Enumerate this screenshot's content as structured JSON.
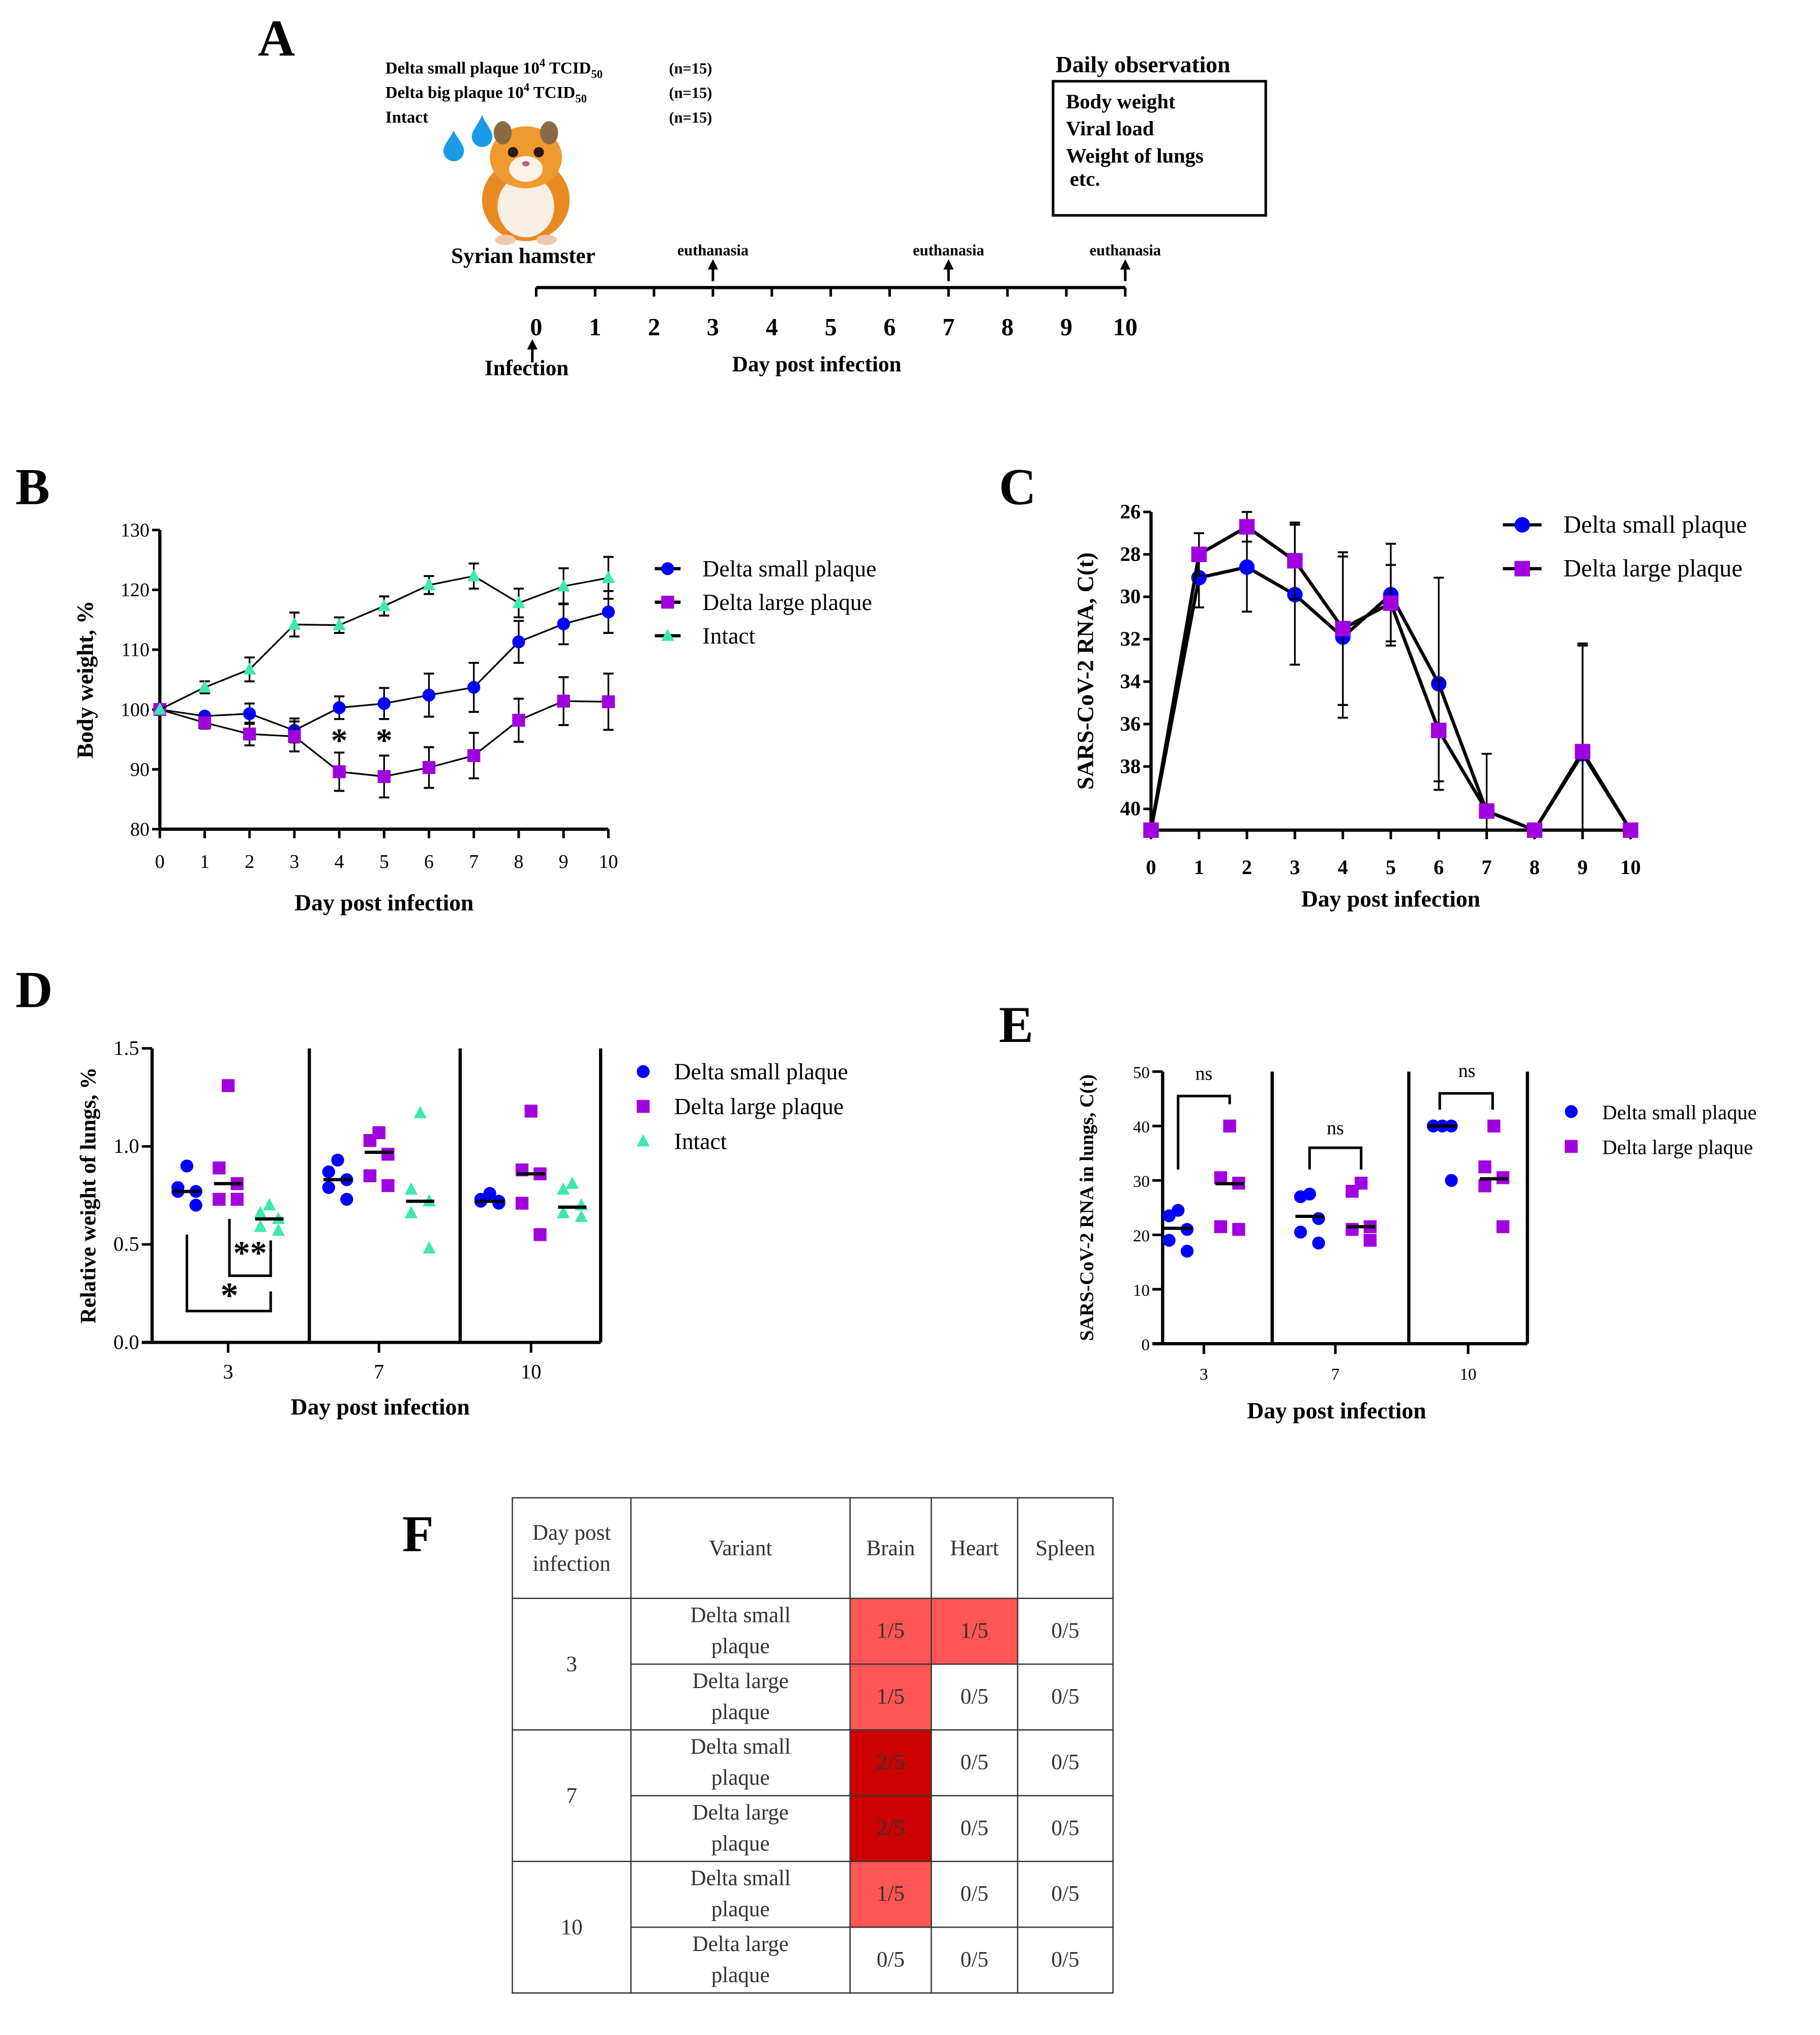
{
  "panel_letters": {
    "A": "A",
    "B": "B",
    "C": "C",
    "D": "D",
    "E": "E",
    "F": "F"
  },
  "colors": {
    "small": "#0000ff",
    "large": "#a000dd",
    "intact": "#3ee8b0",
    "drop": "#1a9be6",
    "cell_light": "#ff5555",
    "cell_dark": "#cc0000"
  },
  "panel_a": {
    "groups": [
      {
        "name": "Delta small plaque 10",
        "exp": "4",
        "unit": " TCID",
        "sub": "50",
        "n": "(n=15)"
      },
      {
        "name": "Delta big plaque 10",
        "exp": "4",
        "unit": " TCID",
        "sub": "50",
        "n": "(n=15)"
      },
      {
        "name": "Intact",
        "exp": "",
        "unit": "",
        "sub": "",
        "n": "(n=15)"
      }
    ],
    "animal": "Syrian hamster",
    "infection": "Infection",
    "euthanasia": "euthanasia",
    "euthanasia_days": [
      3,
      7,
      10
    ],
    "timeline_days": [
      "0",
      "1",
      "2",
      "3",
      "4",
      "5",
      "6",
      "7",
      "8",
      "9",
      "10"
    ],
    "xlabel": "Day post infection",
    "observation_title": "Daily observation",
    "observations": [
      "Body weight",
      "Viral load",
      "Weight of lungs",
      "etc."
    ]
  },
  "chart_data": [
    {
      "panel": "B",
      "type": "line",
      "title": "",
      "xlabel": "Day post infection",
      "ylabel": "Body weight, %",
      "x": [
        0,
        1,
        2,
        3,
        4,
        5,
        6,
        7,
        8,
        9,
        10
      ],
      "xticks": [
        "0",
        "1",
        "2",
        "3",
        "4",
        "5",
        "6",
        "7",
        "8",
        "9",
        "10"
      ],
      "ylim": [
        80,
        130
      ],
      "yticks": [
        "80",
        "90",
        "100",
        "110",
        "120",
        "130"
      ],
      "legend_position": "top-right",
      "series": [
        {
          "name": "Delta small plaque",
          "marker": "circle",
          "color": "#0000ff",
          "values": [
            100,
            98.9,
            99.3,
            96.5,
            100.3,
            101,
            102.4,
            103.7,
            111.3,
            114.3,
            116.3
          ],
          "errors": [
            0,
            0.5,
            1.7,
            2,
            1.9,
            2.6,
            3.6,
            4.1,
            3.5,
            3.4,
            3.5
          ]
        },
        {
          "name": "Delta large plaque",
          "marker": "square",
          "color": "#a000dd",
          "values": [
            100,
            97.8,
            95.9,
            95.5,
            89.6,
            88.8,
            90.3,
            92.3,
            98.2,
            101.4,
            101.3
          ],
          "errors": [
            0,
            1,
            1.9,
            2.5,
            3.2,
            3.5,
            3.4,
            3.8,
            3.6,
            4,
            4.7
          ]
        },
        {
          "name": "Intact",
          "marker": "triangle",
          "color": "#3ee8b0",
          "values": [
            100,
            103.7,
            106.7,
            114.2,
            114.1,
            117.3,
            120.8,
            122.3,
            117.8,
            120.6,
            122
          ],
          "errors": [
            0,
            1,
            2,
            2,
            1.3,
            1.6,
            1.5,
            2.1,
            2.4,
            3,
            3.5
          ]
        }
      ],
      "annotations": [
        {
          "x": 4,
          "y": 96,
          "text": "*"
        },
        {
          "x": 5,
          "y": 96,
          "text": "*"
        }
      ]
    },
    {
      "panel": "C",
      "type": "line",
      "title": "",
      "xlabel": "Day post infection",
      "ylabel": "SARS-CoV-2 RNA, C(t)",
      "x": [
        0,
        1,
        2,
        3,
        4,
        5,
        6,
        7,
        8,
        9,
        10
      ],
      "xticks": [
        "0",
        "1",
        "2",
        "3",
        "4",
        "5",
        "6",
        "7",
        "8",
        "9",
        "10"
      ],
      "ylim": [
        41,
        26
      ],
      "y_reversed": true,
      "yticks": [
        "26",
        "28",
        "30",
        "32",
        "34",
        "36",
        "38",
        "40"
      ],
      "legend_position": "top-right",
      "series": [
        {
          "name": "Delta small plaque",
          "marker": "circle",
          "color": "#0000ff",
          "values": [
            41,
            29.1,
            28.6,
            29.9,
            31.9,
            29.9,
            34.1,
            40.1,
            41,
            37.4,
            41
          ],
          "errors": [
            0,
            1.4,
            2.1,
            3.3,
            3.8,
            2.4,
            5,
            0,
            0,
            5.2,
            0
          ]
        },
        {
          "name": "Delta large plaque",
          "marker": "square",
          "color": "#a000dd",
          "values": [
            41,
            28.0,
            26.7,
            28.3,
            31.5,
            30.3,
            36.3,
            40.1,
            41,
            37.3,
            41
          ],
          "errors": [
            0,
            1,
            0.7,
            1.8,
            3.6,
            1.8,
            2.4,
            2.7,
            0,
            5,
            0
          ]
        }
      ]
    },
    {
      "panel": "D",
      "type": "scatter",
      "title": "",
      "xlabel": "Day post infection",
      "ylabel": "Relative weight of lungs, %",
      "categories": [
        "3",
        "7",
        "10"
      ],
      "ylim": [
        0,
        1.5
      ],
      "yticks": [
        "0.0",
        "0.5",
        "1.0",
        "1.5"
      ],
      "legend_position": "right",
      "series": [
        {
          "name": "Delta small plaque",
          "marker": "circle",
          "color": "#0000ff",
          "values": [
            [
              0.9,
              0.79,
              0.77,
              0.77,
              0.7
            ],
            [
              0.93,
              0.87,
              0.83,
              0.79,
              0.73
            ],
            [
              0.76,
              0.73,
              0.72,
              0.72,
              0.71
            ]
          ],
          "means": [
            0.77,
            0.83,
            0.72
          ]
        },
        {
          "name": "Delta large plaque",
          "marker": "square",
          "color": "#a000dd",
          "values": [
            [
              1.31,
              0.89,
              0.81,
              0.73,
              0.73
            ],
            [
              1.07,
              1.03,
              0.96,
              0.85,
              0.8
            ],
            [
              1.18,
              0.88,
              0.86,
              0.71,
              0.55
            ]
          ],
          "means": [
            0.81,
            0.97,
            0.86
          ]
        },
        {
          "name": "Intact",
          "marker": "triangle",
          "color": "#3ee8b0",
          "values": [
            [
              0.7,
              0.66,
              0.63,
              0.59,
              0.57
            ],
            [
              1.17,
              0.78,
              0.72,
              0.66,
              0.48
            ],
            [
              0.81,
              0.78,
              0.7,
              0.66,
              0.64
            ]
          ],
          "means": [
            0.63,
            0.72,
            0.69
          ]
        }
      ],
      "significance": [
        {
          "category": "3",
          "between": [
            "Delta small plaque",
            "Intact"
          ],
          "label": "*"
        },
        {
          "category": "3",
          "between": [
            "Delta large plaque",
            "Intact"
          ],
          "label": "**"
        }
      ]
    },
    {
      "panel": "E",
      "type": "scatter",
      "title": "",
      "xlabel": "Day post infection",
      "ylabel": "SARS-CoV-2 RNA in lungs, C(t)",
      "categories": [
        "3",
        "7",
        "10"
      ],
      "ylim": [
        0,
        50
      ],
      "yticks": [
        "0",
        "10",
        "20",
        "30",
        "40",
        "50"
      ],
      "legend_position": "right",
      "series": [
        {
          "name": "Delta small plaque",
          "marker": "circle",
          "color": "#0000ff",
          "values": [
            [
              24.5,
              23.5,
              21,
              19,
              17
            ],
            [
              27.5,
              27,
              23,
              20.5,
              18.5
            ],
            [
              40,
              40,
              40,
              40,
              30
            ]
          ],
          "means": [
            21.2,
            23.4,
            40
          ]
        },
        {
          "name": "Delta large plaque",
          "marker": "square",
          "color": "#a000dd",
          "values": [
            [
              40,
              30.5,
              29.5,
              21.5,
              21
            ],
            [
              29.5,
              28,
              21.5,
              21,
              19
            ],
            [
              40,
              32.5,
              30.5,
              29,
              21.5
            ]
          ],
          "means": [
            29.4,
            21.5,
            30.3
          ]
        }
      ],
      "significance": [
        {
          "category": "3",
          "between": [
            "Delta small plaque",
            "Delta large plaque"
          ],
          "label": "ns"
        },
        {
          "category": "7",
          "between": [
            "Delta small plaque",
            "Delta large plaque"
          ],
          "label": "ns"
        },
        {
          "category": "10",
          "between": [
            "Delta small plaque",
            "Delta large plaque"
          ],
          "label": "ns"
        }
      ]
    }
  ],
  "table": {
    "headers": [
      "Day post infection",
      "Variant",
      "Brain",
      "Heart",
      "Spleen"
    ],
    "groups": [
      {
        "day": "3",
        "rows": [
          {
            "variant": "Delta small plaque",
            "brain": "1/5",
            "heart": "1/5",
            "spleen": "0/5"
          },
          {
            "variant": "Delta large plaque",
            "brain": "1/5",
            "heart": "0/5",
            "spleen": "0/5"
          }
        ]
      },
      {
        "day": "7",
        "rows": [
          {
            "variant": "Delta small plaque",
            "brain": "2/5",
            "heart": "0/5",
            "spleen": "0/5"
          },
          {
            "variant": "Delta large plaque",
            "brain": "2/5",
            "heart": "0/5",
            "spleen": "0/5"
          }
        ]
      },
      {
        "day": "10",
        "rows": [
          {
            "variant": "Delta small plaque",
            "brain": "1/5",
            "heart": "0/5",
            "spleen": "0/5"
          },
          {
            "variant": "Delta large plaque",
            "brain": "0/5",
            "heart": "0/5",
            "spleen": "0/5"
          }
        ]
      }
    ]
  }
}
